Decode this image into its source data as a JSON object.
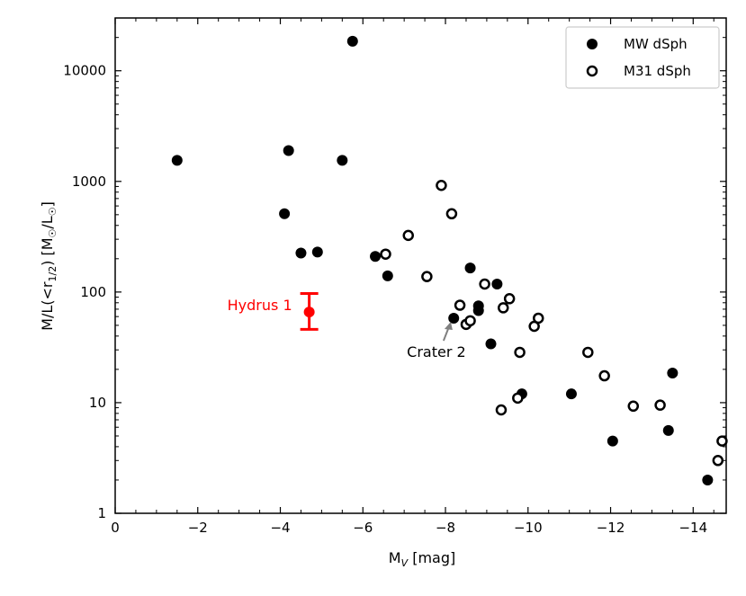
{
  "chart_data": {
    "type": "scatter",
    "title": "",
    "xlabel": {
      "main": "M",
      "sub": "V",
      "unit": " [mag]"
    },
    "ylabel": {
      "text": "M/L(<r",
      "sub": "1/2",
      "rest": ") [M",
      "sun": "☉",
      "slash": "/L",
      "sun2": "☉",
      "close": "]"
    },
    "xlim": [
      0,
      -14.8
    ],
    "ylim": [
      1,
      30000
    ],
    "yscale": "log",
    "xticks": [
      0,
      -2,
      -4,
      -6,
      -8,
      -10,
      -12,
      -14
    ],
    "xtick_labels": [
      "0",
      "−2",
      "−4",
      "−6",
      "−8",
      "−10",
      "−12",
      "−14"
    ],
    "yticks": [
      1,
      10,
      100,
      1000,
      10000
    ],
    "ytick_labels": [
      "1",
      "10",
      "100",
      "1000",
      "10000"
    ],
    "legend": {
      "placement": "top-right"
    },
    "series": [
      {
        "name": "MW dSph",
        "marker": "filled-circle",
        "color": "#000000",
        "points": [
          [
            -1.5,
            1550
          ],
          [
            -4.1,
            510
          ],
          [
            -4.2,
            1900
          ],
          [
            -4.5,
            225
          ],
          [
            -4.9,
            230
          ],
          [
            -5.5,
            1550
          ],
          [
            -5.75,
            18500
          ],
          [
            -6.3,
            210
          ],
          [
            -6.6,
            140
          ],
          [
            -8.2,
            58
          ],
          [
            -8.6,
            165
          ],
          [
            -8.8,
            75
          ],
          [
            -8.8,
            68
          ],
          [
            -9.1,
            34
          ],
          [
            -9.25,
            118
          ],
          [
            -9.85,
            12
          ],
          [
            -11.05,
            12
          ],
          [
            -12.05,
            4.5
          ],
          [
            -13.4,
            5.6
          ],
          [
            -13.5,
            18.5
          ],
          [
            -14.35,
            2.0
          ]
        ]
      },
      {
        "name": "M31 dSph",
        "marker": "open-circle",
        "color": "#000000",
        "points": [
          [
            -6.55,
            220
          ],
          [
            -7.1,
            325
          ],
          [
            -7.55,
            138
          ],
          [
            -7.9,
            920
          ],
          [
            -8.15,
            510
          ],
          [
            -8.35,
            76
          ],
          [
            -8.5,
            51
          ],
          [
            -8.6,
            55
          ],
          [
            -8.95,
            118
          ],
          [
            -9.4,
            72
          ],
          [
            -9.55,
            87
          ],
          [
            -9.35,
            8.6
          ],
          [
            -9.75,
            11
          ],
          [
            -9.8,
            28.5
          ],
          [
            -10.15,
            49
          ],
          [
            -10.25,
            58
          ],
          [
            -11.45,
            28.5
          ],
          [
            -11.85,
            17.5
          ],
          [
            -12.55,
            9.3
          ],
          [
            -13.2,
            9.5
          ],
          [
            -14.6,
            3.0
          ],
          [
            -14.7,
            4.5
          ]
        ]
      }
    ],
    "highlight": {
      "label": "Hydrus 1",
      "color": "#ff0000",
      "x": -4.7,
      "y": 66,
      "y_err_low": 46,
      "y_err_high": 97
    },
    "annotation": {
      "label": "Crater 2",
      "target": [
        -8.15,
        58
      ],
      "arrow_color": "#808080"
    }
  }
}
